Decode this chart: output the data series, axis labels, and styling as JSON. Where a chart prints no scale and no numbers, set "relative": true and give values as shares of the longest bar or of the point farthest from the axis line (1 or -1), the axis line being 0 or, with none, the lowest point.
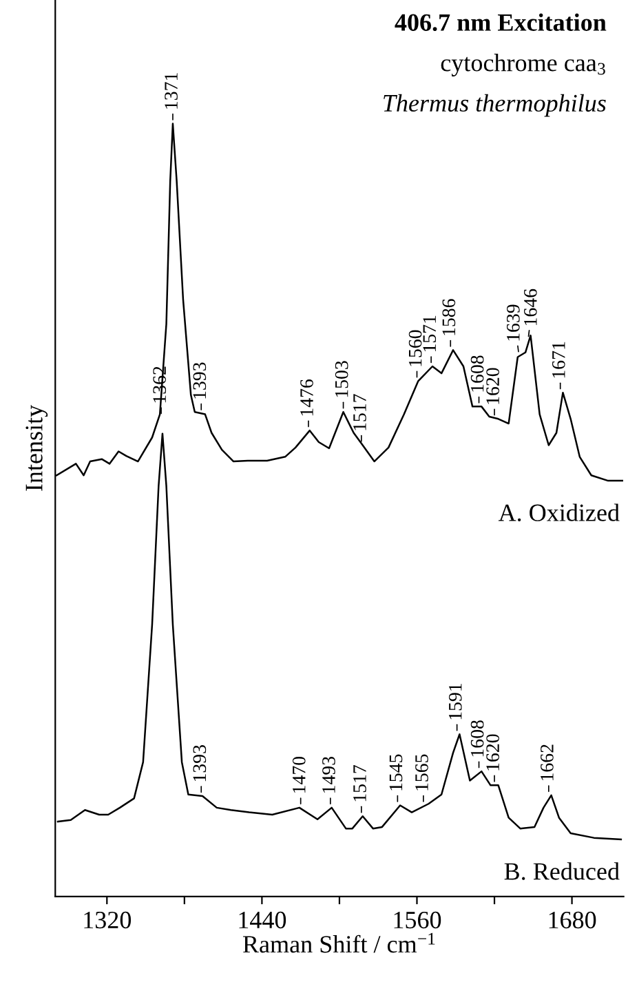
{
  "chart_data": {
    "type": "line",
    "title": "406.7 nm Excitation",
    "subtitle": "cytochrome caa$_{3}$",
    "xlabel": "Raman Shift / cm$^{−1}$",
    "ylabel": "Intensity",
    "relative": true,
    "xlim": [
      1280,
      1720
    ],
    "xticks": [
      1320,
      {
        "value": 1380,
        "label": null
      },
      1440,
      {
        "value": 1500,
        "label": null
      },
      1560,
      {
        "value": 1620,
        "label": null
      },
      1680
    ],
    "grid": false,
    "tick_labels": "x",
    "series": [
      {
        "name": "A. Oxidized",
        "color": "#000000",
        "x": [
          1281,
          1296,
          1302,
          1307,
          1316,
          1322,
          1329,
          1335,
          1344,
          1355,
          1361,
          1366,
          1369,
          1371,
          1374,
          1379,
          1385,
          1388,
          1396,
          1401,
          1409,
          1418,
          1429,
          1444,
          1458,
          1466,
          1477,
          1484,
          1492,
          1503,
          1511,
          1518,
          1527,
          1538,
          1550,
          1561,
          1572,
          1579,
          1588,
          1596,
          1603,
          1610,
          1616,
          1623,
          1631,
          1638,
          1644,
          1648,
          1655,
          1662,
          1668,
          1673,
          1679,
          1686,
          1695,
          1708,
          1719
        ],
        "values": [
          0.545,
          0.56,
          0.545,
          0.563,
          0.566,
          0.56,
          0.576,
          0.57,
          0.563,
          0.594,
          0.624,
          0.741,
          0.926,
          1.0,
          0.926,
          0.772,
          0.649,
          0.627,
          0.624,
          0.6,
          0.578,
          0.563,
          0.564,
          0.564,
          0.569,
          0.581,
          0.603,
          0.588,
          0.58,
          0.627,
          0.6,
          0.584,
          0.563,
          0.581,
          0.624,
          0.667,
          0.686,
          0.677,
          0.707,
          0.686,
          0.634,
          0.634,
          0.621,
          0.618,
          0.612,
          0.698,
          0.704,
          0.726,
          0.624,
          0.584,
          0.6,
          0.652,
          0.618,
          0.569,
          0.545,
          0.538,
          0.538
        ]
      },
      {
        "name": "B. Reduced",
        "color": "#000000",
        "x": [
          1282,
          1292,
          1303,
          1314,
          1321,
          1330,
          1341,
          1348,
          1355,
          1360,
          1363,
          1366,
          1371,
          1378,
          1383,
          1394,
          1405,
          1416,
          1430,
          1448,
          1469,
          1483,
          1494,
          1505,
          1510,
          1518,
          1526,
          1533,
          1547,
          1556,
          1569,
          1579,
          1588,
          1593,
          1601,
          1610,
          1617,
          1623,
          1631,
          1640,
          1651,
          1658,
          1664,
          1670,
          1679,
          1697,
          1718
        ],
        "values": [
          0.097,
          0.099,
          0.112,
          0.106,
          0.106,
          0.115,
          0.127,
          0.174,
          0.352,
          0.531,
          0.599,
          0.531,
          0.352,
          0.174,
          0.132,
          0.13,
          0.115,
          0.112,
          0.109,
          0.106,
          0.115,
          0.1,
          0.115,
          0.088,
          0.088,
          0.104,
          0.088,
          0.09,
          0.118,
          0.109,
          0.12,
          0.132,
          0.186,
          0.21,
          0.15,
          0.162,
          0.144,
          0.144,
          0.102,
          0.088,
          0.09,
          0.115,
          0.131,
          0.102,
          0.082,
          0.076,
          0.074
        ]
      }
    ],
    "annotations": [
      "Thermus thermophilus",
      {
        "text": "1362",
        "x": 1362,
        "y": 0.62
      },
      {
        "text": "1371",
        "x": 1371,
        "y": 1.0
      },
      {
        "text": "1393",
        "x": 1393,
        "y": 0.625
      },
      {
        "text": "1476",
        "x": 1476,
        "y": 0.603
      },
      {
        "text": "1503",
        "x": 1503,
        "y": 0.627
      },
      {
        "text": "1517",
        "x": 1517,
        "y": 0.584
      },
      {
        "text": "1560",
        "x": 1560,
        "y": 0.667
      },
      {
        "text": "1571",
        "x": 1571,
        "y": 0.686
      },
      {
        "text": "1586",
        "x": 1586,
        "y": 0.707
      },
      {
        "text": "1608",
        "x": 1608,
        "y": 0.634
      },
      {
        "text": "1620",
        "x": 1620,
        "y": 0.618
      },
      {
        "text": "1639",
        "x": 1639,
        "y": 0.7
      },
      {
        "text": "1646",
        "x": 1646,
        "y": 0.72
      },
      {
        "text": "1671",
        "x": 1671,
        "y": 0.652
      },
      {
        "text": "1393",
        "x": 1393,
        "y": 0.13
      },
      {
        "text": "1470",
        "x": 1470,
        "y": 0.115
      },
      {
        "text": "1493",
        "x": 1493,
        "y": 0.115
      },
      {
        "text": "1517",
        "x": 1517,
        "y": 0.104
      },
      {
        "text": "1545",
        "x": 1545,
        "y": 0.118
      },
      {
        "text": "1565",
        "x": 1565,
        "y": 0.118
      },
      {
        "text": "1591",
        "x": 1591,
        "y": 0.21
      },
      {
        "text": "1608",
        "x": 1608,
        "y": 0.162
      },
      {
        "text": "1620",
        "x": 1620,
        "y": 0.144
      },
      {
        "text": "1662",
        "x": 1662,
        "y": 0.131
      }
    ]
  }
}
